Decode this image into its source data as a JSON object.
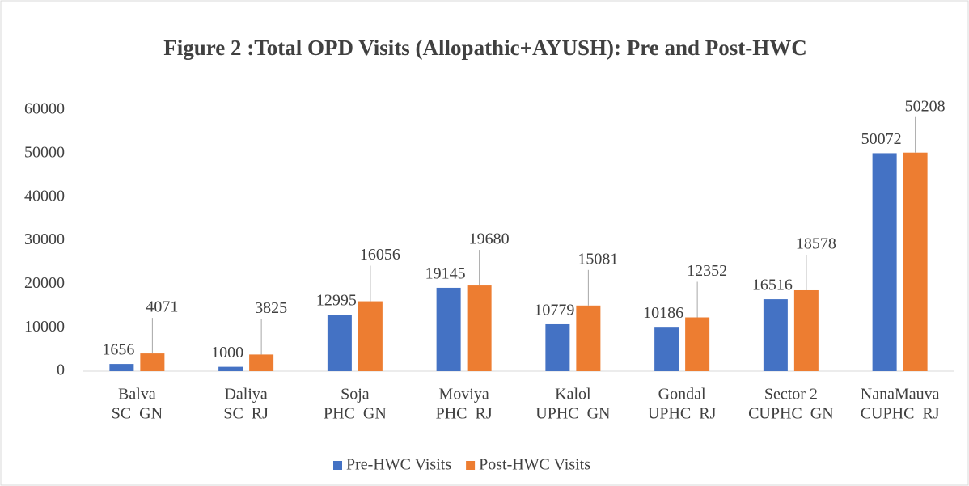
{
  "chart_data": {
    "type": "bar",
    "title": "Figure 2 :Total OPD Visits (Allopathic+AYUSH): Pre and Post-HWC",
    "categories": [
      [
        "Balva",
        "SC_GN"
      ],
      [
        "Daliya",
        "SC_RJ"
      ],
      [
        "Soja",
        "PHC_GN"
      ],
      [
        "Moviya",
        "PHC_RJ"
      ],
      [
        "Kalol",
        "UPHC_GN"
      ],
      [
        "Gondal",
        "UPHC_RJ"
      ],
      [
        "Sector 2",
        "CUPHC_GN"
      ],
      [
        "NanaMauva",
        "CUPHC_RJ"
      ]
    ],
    "series": [
      {
        "name": "Pre-HWC Visits",
        "color": "#4472c4",
        "values": [
          1656,
          1000,
          12995,
          19145,
          10779,
          10186,
          16516,
          50072
        ]
      },
      {
        "name": "Post-HWC Visits",
        "color": "#ed7d31",
        "values": [
          4071,
          3825,
          16056,
          19680,
          15081,
          12352,
          18578,
          50208
        ]
      }
    ],
    "ylim": [
      0,
      60000
    ],
    "yticks": [
      0,
      10000,
      20000,
      30000,
      40000,
      50000,
      60000
    ],
    "grid": false,
    "legend": "bottom"
  }
}
